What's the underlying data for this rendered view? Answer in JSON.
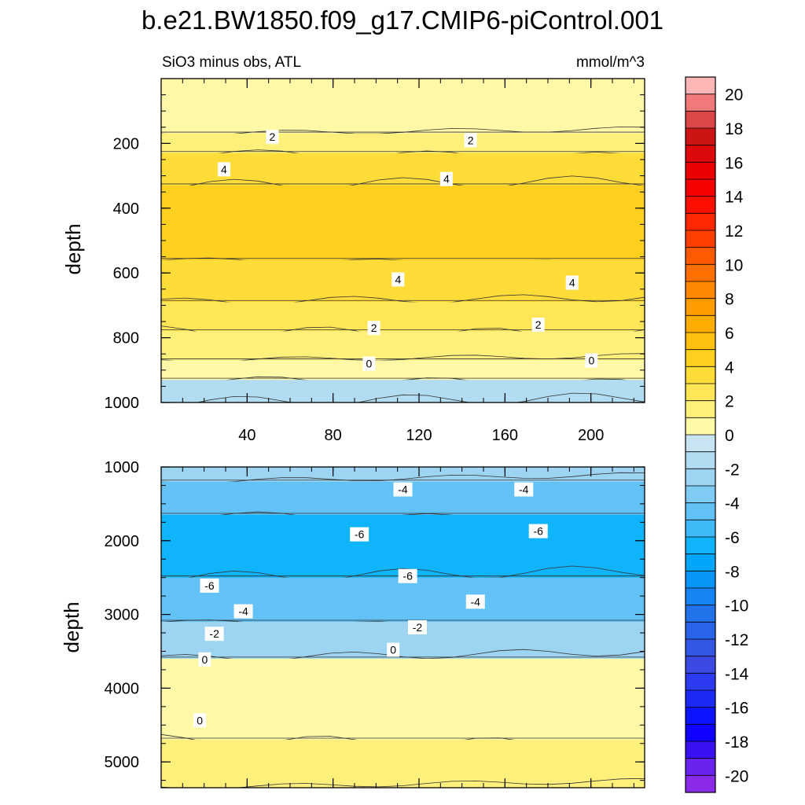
{
  "chart_data": {
    "type": "contour",
    "title": "b.e21.BW1850.f09_g17.CMIP6-piControl.001",
    "subtitle_left": "SiO3 minus obs, ATL",
    "subtitle_right": "mmol/m^3",
    "colorbar": {
      "ticks": [
        "20",
        "18",
        "16",
        "14",
        "12",
        "10",
        "8",
        "6",
        "4",
        "2",
        "0",
        "-2",
        "-4",
        "-6",
        "-8",
        "-10",
        "-12",
        "-14",
        "-16",
        "-18",
        "-20"
      ],
      "levels_from_top": [
        {
          "value": 21,
          "color": "#ffb6b6"
        },
        {
          "value": 20,
          "color": "#f07a7a"
        },
        {
          "value": 19,
          "color": "#dc4848"
        },
        {
          "value": 18,
          "color": "#cc1414"
        },
        {
          "value": 17,
          "color": "#dc0a0a"
        },
        {
          "value": 16,
          "color": "#eb0000"
        },
        {
          "value": 15,
          "color": "#f70000"
        },
        {
          "value": 14,
          "color": "#ff0f00"
        },
        {
          "value": 13,
          "color": "#ff2800"
        },
        {
          "value": 12,
          "color": "#ff4000"
        },
        {
          "value": 11,
          "color": "#ff5a00"
        },
        {
          "value": 10,
          "color": "#ff7000"
        },
        {
          "value": 9,
          "color": "#ff8800"
        },
        {
          "value": 8,
          "color": "#ff9c00"
        },
        {
          "value": 7,
          "color": "#ffae00"
        },
        {
          "value": 6,
          "color": "#ffc010"
        },
        {
          "value": 5,
          "color": "#ffd020"
        },
        {
          "value": 4,
          "color": "#ffdc38"
        },
        {
          "value": 3,
          "color": "#ffe656"
        },
        {
          "value": 2,
          "color": "#fff07c"
        },
        {
          "value": 1,
          "color": "#fff8a6"
        },
        {
          "value": 0,
          "color": "#c8e4f2"
        },
        {
          "value": -1,
          "color": "#b2dcf1"
        },
        {
          "value": -2,
          "color": "#9cd4f2"
        },
        {
          "value": -3,
          "color": "#80cbf4"
        },
        {
          "value": -4,
          "color": "#62c2f5"
        },
        {
          "value": -5,
          "color": "#3ebaf8"
        },
        {
          "value": -6,
          "color": "#10b4fa"
        },
        {
          "value": -7,
          "color": "#00a6fa"
        },
        {
          "value": -8,
          "color": "#0a96f8"
        },
        {
          "value": -9,
          "color": "#1684f2"
        },
        {
          "value": -10,
          "color": "#2272ea"
        },
        {
          "value": -11,
          "color": "#2a64e8"
        },
        {
          "value": -12,
          "color": "#3456e4"
        },
        {
          "value": -13,
          "color": "#3a4ae2"
        },
        {
          "value": -14,
          "color": "#2c3af0"
        },
        {
          "value": -15,
          "color": "#1c2af8"
        },
        {
          "value": -16,
          "color": "#0c14ff"
        },
        {
          "value": -17,
          "color": "#1000ff"
        },
        {
          "value": -18,
          "color": "#3a10f4"
        },
        {
          "value": -19,
          "color": "#6a22ee"
        },
        {
          "value": -20,
          "color": "#8a2ae8"
        }
      ]
    },
    "panels": [
      {
        "name": "upper",
        "ylabel": "depth",
        "ylim": [
          1000,
          0
        ],
        "xlim": [
          0,
          225
        ],
        "yticks": [
          "200",
          "400",
          "600",
          "800",
          "1000"
        ],
        "xticks": [
          "40",
          "80",
          "120",
          "160",
          "200"
        ],
        "layers": [
          {
            "depth_range": [
              0,
              170
            ],
            "value": 1
          },
          {
            "depth_range": [
              170,
              230
            ],
            "value": 2
          },
          {
            "depth_range": [
              230,
              330
            ],
            "value": 4
          },
          {
            "depth_range": [
              330,
              560
            ],
            "value": 5
          },
          {
            "depth_range": [
              560,
              690
            ],
            "value": 4
          },
          {
            "depth_range": [
              690,
              780
            ],
            "value": 3
          },
          {
            "depth_range": [
              780,
              870
            ],
            "value": 2
          },
          {
            "depth_range": [
              870,
              930
            ],
            "value": 1
          },
          {
            "depth_range": [
              930,
              1000
            ],
            "value": -1
          }
        ],
        "contour_labels": [
          "2",
          "2",
          "4",
          "4",
          "4",
          "4",
          "2",
          "2",
          "0",
          "0"
        ]
      },
      {
        "name": "lower",
        "ylabel": "depth",
        "ylim": [
          5350,
          1000
        ],
        "xlim": [
          0,
          225
        ],
        "yticks": [
          "1000",
          "2000",
          "3000",
          "4000",
          "5000"
        ],
        "layers": [
          {
            "depth_range": [
              1000,
              1200
            ],
            "value": -2
          },
          {
            "depth_range": [
              1200,
              1650
            ],
            "value": -4
          },
          {
            "depth_range": [
              1650,
              2500
            ],
            "value": -6
          },
          {
            "depth_range": [
              2500,
              3100
            ],
            "value": -4
          },
          {
            "depth_range": [
              3100,
              3600
            ],
            "value": -2
          },
          {
            "depth_range": [
              3600,
              4700
            ],
            "value": 1
          },
          {
            "depth_range": [
              4700,
              5350
            ],
            "value": 2
          }
        ],
        "contour_labels": [
          "-4",
          "-4",
          "-6",
          "-6",
          "-6",
          "-6",
          "-4",
          "-4",
          "-2",
          "-2",
          "0",
          "0",
          "0"
        ]
      }
    ]
  }
}
